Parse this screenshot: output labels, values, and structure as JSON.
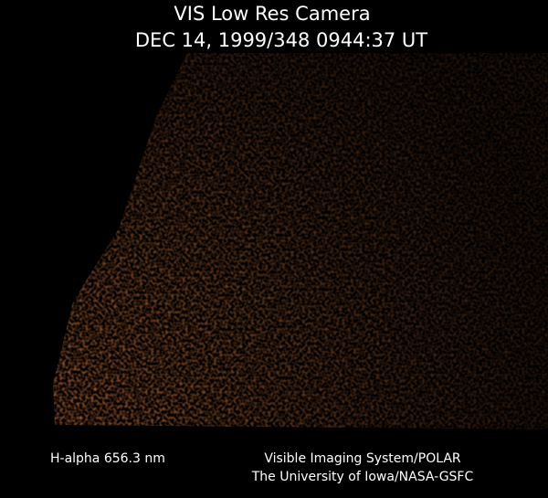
{
  "header": {
    "title": "VIS Low Res Camera",
    "timestamp": "DEC 14, 1999/348 0944:37 UT"
  },
  "footer": {
    "filter": "H-alpha 656.3 nm",
    "instrument": "Visible Imaging System/POLAR",
    "institution": "The University of Iowa/NASA-GSFC"
  }
}
